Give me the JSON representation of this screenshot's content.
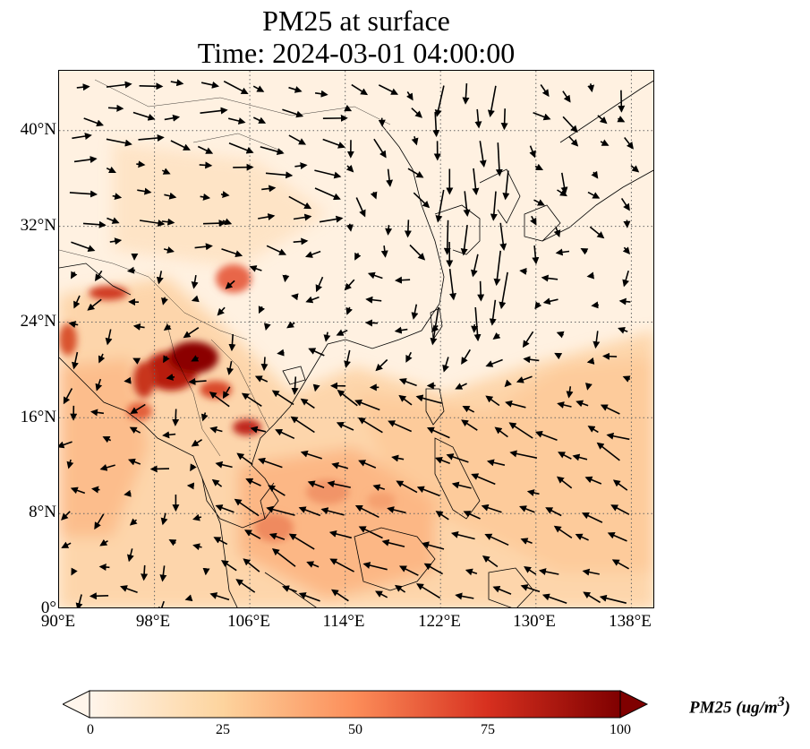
{
  "title": {
    "line1": "PM25 at surface",
    "line2": "Time: 2024-03-01 04:00:00"
  },
  "map": {
    "lat_ticks": [
      "40°N",
      "32°N",
      "24°N",
      "16°N",
      "8°N",
      "0°"
    ],
    "lon_ticks": [
      "90°E",
      "98°E",
      "106°E",
      "114°E",
      "122°E",
      "130°E",
      "138°E"
    ],
    "extent": {
      "lon_min": 90,
      "lon_max": 140,
      "lat_min": 0,
      "lat_max": 45
    },
    "gridlines": true,
    "wind_vectors": true
  },
  "colorbar": {
    "ticks": [
      "0",
      "25",
      "50",
      "75",
      "100"
    ],
    "label": "PM25 (ug/m",
    "label_sup": "3",
    "label_end": ")",
    "colormap": "OrRd",
    "colors": [
      "#fff5eb",
      "#fdd49e",
      "#fc8d59",
      "#d7301f",
      "#7f0000"
    ],
    "extend": "both"
  }
}
